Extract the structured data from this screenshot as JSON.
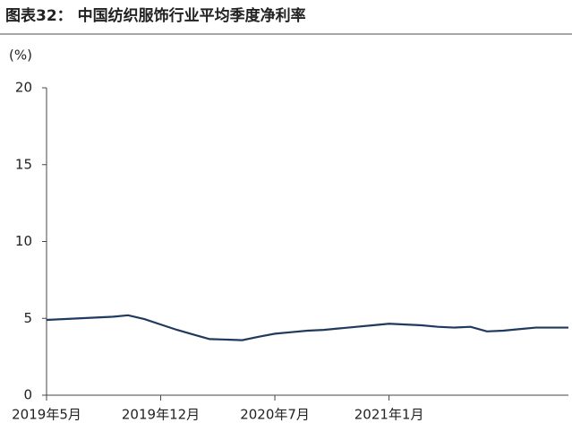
{
  "chart_data": {
    "type": "line",
    "title": "图表32： 中国纺织服饰行业平均季度净利率",
    "y_label": "(%)",
    "categories": [
      "2019年5月",
      null,
      null,
      null,
      null,
      null,
      null,
      "2019年12月",
      null,
      null,
      null,
      null,
      null,
      null,
      "2020年7月",
      null,
      null,
      null,
      null,
      null,
      null,
      "2021年1月",
      null,
      null,
      null,
      null,
      null,
      null,
      null,
      null,
      null,
      null,
      null
    ],
    "series": [
      {
        "name": "平均季度净利率",
        "color": "#1f3a5f",
        "values": [
          4.9,
          4.95,
          5.0,
          5.05,
          5.1,
          5.2,
          4.95,
          4.6,
          4.25,
          3.95,
          3.65,
          3.62,
          3.58,
          3.8,
          4.0,
          4.1,
          4.2,
          4.25,
          4.35,
          4.45,
          4.55,
          4.65,
          4.6,
          4.55,
          4.45,
          4.4,
          4.45,
          4.15,
          4.2,
          4.3,
          4.4,
          4.4,
          4.4
        ]
      }
    ],
    "ylim": [
      0,
      20
    ],
    "yticks": [
      0,
      5,
      10,
      15,
      20
    ],
    "grid": false
  }
}
